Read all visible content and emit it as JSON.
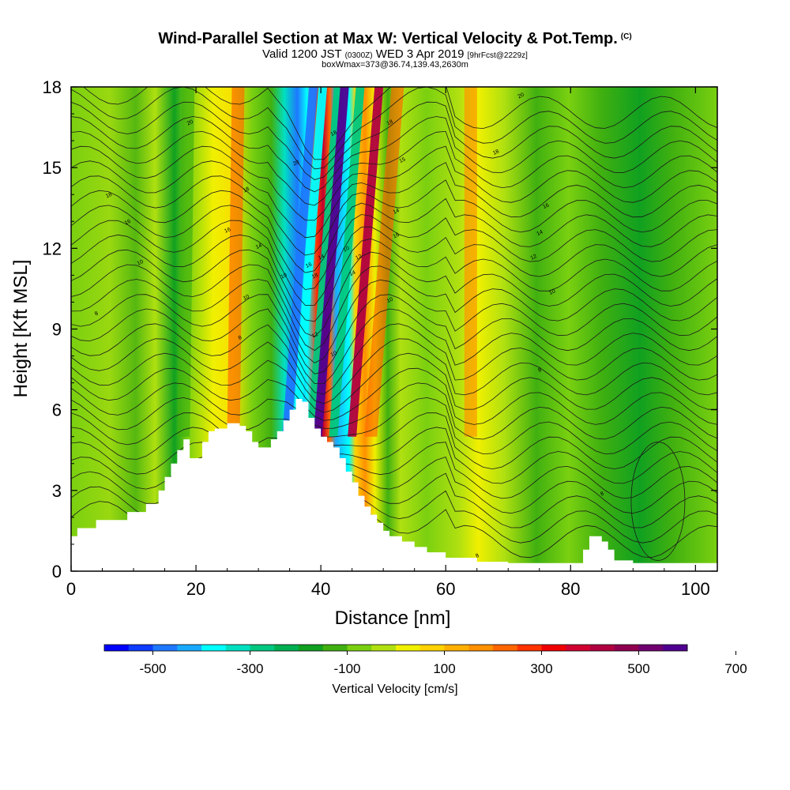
{
  "header": {
    "title": "Wind-Parallel Section at Max W: Vertical Velocity & Pot.Temp.",
    "copyright": "(C)",
    "valid_prefix": "Valid 1200 JST",
    "valid_utc": "(0300Z)",
    "valid_date": "WED 3 Apr 2019",
    "forecast": "[9hrFcst@2229z]",
    "box_info": "boxWmax=373@36.74,139.43,2630m"
  },
  "chart_data": {
    "type": "heatmap",
    "xlabel": "Distance [nm]",
    "ylabel": "Height [Kft MSL]",
    "xlim": [
      0,
      103.5
    ],
    "ylim": [
      0,
      18
    ],
    "x_ticks": [
      0,
      20,
      40,
      60,
      80,
      100
    ],
    "y_ticks": [
      0,
      3,
      6,
      9,
      12,
      15,
      18
    ],
    "terrain_profile": {
      "x": [
        0,
        1,
        4,
        9,
        12,
        14,
        15,
        16,
        17,
        18,
        19,
        20,
        21,
        22,
        23,
        25,
        27,
        28,
        29,
        30,
        31,
        32,
        33,
        34,
        35,
        36,
        37,
        38,
        39,
        40,
        41,
        42,
        43,
        44,
        45,
        46,
        47,
        48,
        49,
        50,
        51,
        53,
        55,
        57,
        60,
        65,
        70,
        75,
        80,
        82,
        83,
        85,
        86,
        87,
        90,
        95,
        100,
        103.5
      ],
      "height": [
        1.3,
        1.6,
        1.9,
        2.2,
        2.5,
        3.0,
        3.5,
        4.0,
        4.5,
        4.9,
        4.2,
        4.2,
        4.8,
        5.2,
        5.3,
        5.5,
        5.4,
        5.2,
        4.8,
        4.6,
        4.6,
        4.9,
        5.2,
        5.6,
        6.0,
        6.4,
        6.3,
        5.7,
        5.3,
        5.0,
        4.8,
        4.6,
        4.2,
        3.7,
        3.3,
        2.8,
        2.4,
        2.1,
        1.8,
        1.5,
        1.3,
        1.1,
        0.9,
        0.7,
        0.5,
        0.35,
        0.3,
        0.3,
        0.3,
        0.8,
        1.3,
        1.1,
        0.8,
        0.4,
        0.3,
        0.3,
        0.3,
        0.3
      ]
    },
    "vertical_velocity_bands": [
      {
        "x": 34.5,
        "value": -480
      },
      {
        "x": 36,
        "value": -380
      },
      {
        "x": 38.5,
        "value": -300
      },
      {
        "x": 39.5,
        "value": 600
      },
      {
        "x": 42,
        "value": -300
      },
      {
        "x": 45,
        "value": 400
      },
      {
        "x": 48,
        "value": 200
      },
      {
        "x": 26,
        "value": 200
      },
      {
        "x": 18,
        "value": -120
      },
      {
        "x": 64,
        "value": 180
      }
    ],
    "theta_contour_labels": [
      {
        "x": 4,
        "y": 9.6,
        "label": "8"
      },
      {
        "x": 6,
        "y": 14.0,
        "label": "18"
      },
      {
        "x": 9,
        "y": 13.0,
        "label": "16"
      },
      {
        "x": 11,
        "y": 11.5,
        "label": "10"
      },
      {
        "x": 19,
        "y": 16.7,
        "label": "20"
      },
      {
        "x": 28,
        "y": 14.2,
        "label": "18"
      },
      {
        "x": 25,
        "y": 12.7,
        "label": "16"
      },
      {
        "x": 30,
        "y": 12.1,
        "label": "14"
      },
      {
        "x": 28,
        "y": 10.2,
        "label": "10"
      },
      {
        "x": 27,
        "y": 8.7,
        "label": "8"
      },
      {
        "x": 34,
        "y": 11.0,
        "label": "10"
      },
      {
        "x": 36,
        "y": 15.2,
        "label": "20"
      },
      {
        "x": 38,
        "y": 11.4,
        "label": "16"
      },
      {
        "x": 40,
        "y": 11.7,
        "label": "14"
      },
      {
        "x": 39,
        "y": 11.0,
        "label": "18"
      },
      {
        "x": 39,
        "y": 8.8,
        "label": "12"
      },
      {
        "x": 42,
        "y": 16.3,
        "label": "18"
      },
      {
        "x": 44,
        "y": 12.0,
        "label": "10"
      },
      {
        "x": 46,
        "y": 11.7,
        "label": "12"
      },
      {
        "x": 45,
        "y": 11.1,
        "label": "14"
      },
      {
        "x": 42,
        "y": 8.1,
        "label": "10"
      },
      {
        "x": 51,
        "y": 16.7,
        "label": "18"
      },
      {
        "x": 53,
        "y": 15.3,
        "label": "15"
      },
      {
        "x": 52,
        "y": 13.4,
        "label": "14"
      },
      {
        "x": 52,
        "y": 12.5,
        "label": "16"
      },
      {
        "x": 51,
        "y": 10.1,
        "label": "10"
      },
      {
        "x": 72,
        "y": 17.7,
        "label": "20"
      },
      {
        "x": 68,
        "y": 15.6,
        "label": "18"
      },
      {
        "x": 76,
        "y": 13.6,
        "label": "16"
      },
      {
        "x": 75,
        "y": 12.6,
        "label": "14"
      },
      {
        "x": 74,
        "y": 11.7,
        "label": "12"
      },
      {
        "x": 77,
        "y": 10.4,
        "label": "10"
      },
      {
        "x": 75,
        "y": 7.5,
        "label": "8"
      },
      {
        "x": 85,
        "y": 2.9,
        "label": "8"
      },
      {
        "x": 65,
        "y": 0.6,
        "label": "8"
      }
    ]
  },
  "colorbar": {
    "label": "Vertical Velocity [cm/s]",
    "ticks": [
      "-500",
      "-300",
      "-100",
      "100",
      "300",
      "500",
      "700"
    ],
    "colors": [
      "#0000ff",
      "#0d3dff",
      "#1e78ff",
      "#19aaff",
      "#00ffff",
      "#00e0c0",
      "#00c880",
      "#00b050",
      "#10a020",
      "#40b010",
      "#7ad010",
      "#b0e010",
      "#f0f000",
      "#ffd200",
      "#ffb000",
      "#ff9000",
      "#ff6600",
      "#ff3300",
      "#f00000",
      "#d00030",
      "#b00040",
      "#900050",
      "#700070",
      "#500090"
    ]
  }
}
